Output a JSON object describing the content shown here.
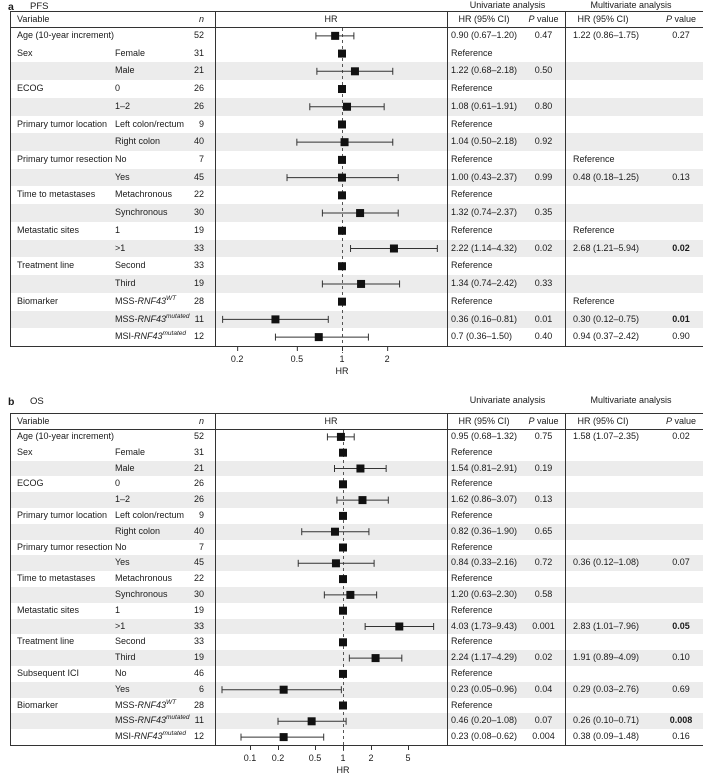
{
  "chart_data": [
    {
      "type": "forest",
      "panel_letter": "a",
      "title": "PFS",
      "xlabel": "HR",
      "xscale": "log",
      "ticks": [
        0.2,
        0.5,
        1,
        2
      ],
      "tick_labels": [
        "0.2",
        "0.5",
        "1",
        "2"
      ],
      "headers": {
        "variable": "Variable",
        "n": "n",
        "plot": "HR",
        "hr_ci": "HR (95% CI)",
        "p": "P",
        "p_rest": " value",
        "univariate": "Univariate analysis",
        "multivariate": "Multivariate analysis"
      },
      "rows": [
        {
          "group": "Age  (10-year increment)",
          "label": "",
          "n": "52",
          "hr": 0.9,
          "lo": 0.67,
          "hi": 1.2,
          "uni": "0.90 (0.67–1.20)",
          "uni_p": "0.47",
          "multi": "1.22 (0.86–1.75)",
          "multi_p": "0.27"
        },
        {
          "group": "Sex",
          "label": "Female",
          "n": "31",
          "ref": true,
          "uni": "Reference"
        },
        {
          "label": "Male",
          "n": "21",
          "hr": 1.22,
          "lo": 0.68,
          "hi": 2.18,
          "uni": "1.22 (0.68–2.18)",
          "uni_p": "0.50"
        },
        {
          "group": "ECOG",
          "label": "0",
          "n": "26",
          "ref": true,
          "uni": "Reference"
        },
        {
          "label": "1–2",
          "n": "26",
          "hr": 1.08,
          "lo": 0.61,
          "hi": 1.91,
          "uni": "1.08 (0.61–1.91)",
          "uni_p": "0.80"
        },
        {
          "group": "Primary tumor location",
          "label": "Left colon/rectum",
          "n": "9",
          "ref": true,
          "uni": "Reference"
        },
        {
          "label": "Right colon",
          "n": "40",
          "hr": 1.04,
          "lo": 0.5,
          "hi": 2.18,
          "uni": "1.04 (0.50–2.18)",
          "uni_p": "0.92"
        },
        {
          "group": "Primary tumor resection",
          "label": "No",
          "n": "7",
          "ref": true,
          "uni": "Reference",
          "multi": "Reference"
        },
        {
          "label": "Yes",
          "n": "45",
          "hr": 1.0,
          "lo": 0.43,
          "hi": 2.37,
          "uni": "1.00 (0.43–2.37)",
          "uni_p": "0.99",
          "multi": "0.48 (0.18–1.25)",
          "multi_p": "0.13"
        },
        {
          "group": "Time to metastases",
          "label": "Metachronous",
          "n": "22",
          "ref": true,
          "uni": "Reference"
        },
        {
          "label": "Synchronous",
          "n": "30",
          "hr": 1.32,
          "lo": 0.74,
          "hi": 2.37,
          "uni": "1.32 (0.74–2.37)",
          "uni_p": "0.35"
        },
        {
          "group": "Metastatic sites",
          "label": "1",
          "n": "19",
          "ref": true,
          "uni": "Reference",
          "multi": "Reference"
        },
        {
          "label": ">1",
          "n": "33",
          "hr": 2.22,
          "lo": 1.14,
          "hi": 4.32,
          "uni": "2.22 (1.14–4.32)",
          "uni_p": "0.02",
          "multi": "2.68 (1.21–5.94)",
          "multi_p": "0.02",
          "multi_p_bold": true
        },
        {
          "group": "Treatment line",
          "label": "Second",
          "n": "33",
          "ref": true,
          "uni": "Reference"
        },
        {
          "label": "Third",
          "n": "19",
          "hr": 1.34,
          "lo": 0.74,
          "hi": 2.42,
          "uni": "1.34 (0.74–2.42)",
          "uni_p": "0.33"
        },
        {
          "group": "Biomarker",
          "label": {
            "pre": "MSS-",
            "gene": "RNF43",
            "sup": "WT"
          },
          "n": "28",
          "ref": true,
          "uni": "Reference",
          "multi": "Reference"
        },
        {
          "label": {
            "pre": "MSS-",
            "gene": "RNF43",
            "sup": "mutated"
          },
          "n": "11",
          "hr": 0.36,
          "lo": 0.16,
          "hi": 0.81,
          "uni": "0.36 (0.16–0.81)",
          "uni_p": "0.01",
          "multi": "0.30 (0.12–0.75)",
          "multi_p": "0.01",
          "multi_p_bold": true
        },
        {
          "label": {
            "pre": "MSI-",
            "gene": "RNF43",
            "sup": "mutated"
          },
          "n": "12",
          "hr": 0.7,
          "lo": 0.36,
          "hi": 1.5,
          "uni": "0.7 (0.36–1.50)",
          "uni_p": "0.40",
          "multi": "0.94 (0.37–2.42)",
          "multi_p": "0.90"
        }
      ]
    },
    {
      "type": "forest",
      "panel_letter": "b",
      "title": "OS",
      "xlabel": "HR",
      "xscale": "log",
      "ticks": [
        0.1,
        0.2,
        0.5,
        1,
        2,
        5
      ],
      "tick_labels": [
        "0.1",
        "0.2",
        "0.5",
        "1",
        "2",
        "5"
      ],
      "headers": {
        "variable": "Variable",
        "n": "n",
        "plot": "HR",
        "hr_ci": "HR (95% CI)",
        "p": "P",
        "p_rest": " value",
        "univariate": "Univariate analysis",
        "multivariate": "Multivariate analysis"
      },
      "rows": [
        {
          "group": "Age  (10-year increment)",
          "label": "",
          "n": "52",
          "hr": 0.95,
          "lo": 0.68,
          "hi": 1.32,
          "uni": "0.95 (0.68–1.32)",
          "uni_p": "0.75",
          "multi": "1.58 (1.07–2.35)",
          "multi_p": "0.02"
        },
        {
          "group": "Sex",
          "label": "Female",
          "n": "31",
          "ref": true,
          "uni": "Reference"
        },
        {
          "label": "Male",
          "n": "21",
          "hr": 1.54,
          "lo": 0.81,
          "hi": 2.91,
          "uni": "1.54 (0.81–2.91)",
          "uni_p": "0.19"
        },
        {
          "group": "ECOG",
          "label": "0",
          "n": "26",
          "ref": true,
          "uni": "Reference"
        },
        {
          "label": "1–2",
          "n": "26",
          "hr": 1.62,
          "lo": 0.86,
          "hi": 3.07,
          "uni": "1.62 (0.86–3.07)",
          "uni_p": "0.13"
        },
        {
          "group": "Primary tumor location",
          "label": "Left colon/rectum",
          "n": "9",
          "ref": true,
          "uni": "Reference"
        },
        {
          "label": "Right colon",
          "n": "40",
          "hr": 0.82,
          "lo": 0.36,
          "hi": 1.9,
          "uni": "0.82 (0.36–1.90)",
          "uni_p": "0.65"
        },
        {
          "group": "Primary tumor resection",
          "label": "No",
          "n": "7",
          "ref": true,
          "uni": "Reference"
        },
        {
          "label": "Yes",
          "n": "45",
          "hr": 0.84,
          "lo": 0.33,
          "hi": 2.16,
          "uni": "0.84 (0.33–2.16)",
          "uni_p": "0.72",
          "multi": "0.36 (0.12–1.08)",
          "multi_p": "0.07"
        },
        {
          "group": "Time to metastases",
          "label": "Metachronous",
          "n": "22",
          "ref": true,
          "uni": "Reference"
        },
        {
          "label": "Synchronous",
          "n": "30",
          "hr": 1.2,
          "lo": 0.63,
          "hi": 2.3,
          "uni": "1.20 (0.63–2.30)",
          "uni_p": "0.58"
        },
        {
          "group": "Metastatic sites",
          "label": "1",
          "n": "19",
          "ref": true,
          "uni": "Reference"
        },
        {
          "label": ">1",
          "n": "33",
          "hr": 4.03,
          "lo": 1.73,
          "hi": 9.43,
          "uni": "4.03 (1.73–9.43)",
          "uni_p": "0.001",
          "multi": "2.83 (1.01–7.96)",
          "multi_p": "0.05",
          "multi_p_bold": true
        },
        {
          "group": "Treatment line",
          "label": "Second",
          "n": "33",
          "ref": true,
          "uni": "Reference"
        },
        {
          "label": "Third",
          "n": "19",
          "hr": 2.24,
          "lo": 1.17,
          "hi": 4.29,
          "uni": "2.24 (1.17–4.29)",
          "uni_p": "0.02",
          "multi": "1.91 (0.89–4.09)",
          "multi_p": "0.10"
        },
        {
          "group": "Subsequent ICI",
          "label": "No",
          "n": "46",
          "ref": true,
          "uni": "Reference"
        },
        {
          "label": "Yes",
          "n": "6",
          "hr": 0.23,
          "lo": 0.05,
          "hi": 0.96,
          "uni": "0.23 (0.05–0.96)",
          "uni_p": "0.04",
          "multi": "0.29 (0.03–2.76)",
          "multi_p": "0.69"
        },
        {
          "group": "Biomarker",
          "label": {
            "pre": "MSS-",
            "gene": "RNF43",
            "sup": "WT"
          },
          "n": "28",
          "ref": true,
          "uni": "Reference"
        },
        {
          "label": {
            "pre": "MSS-",
            "gene": "RNF43",
            "sup": "mutated"
          },
          "n": "11",
          "hr": 0.46,
          "lo": 0.2,
          "hi": 1.08,
          "uni": "0.46 (0.20–1.08)",
          "uni_p": "0.07",
          "multi": "0.26 (0.10–0.71)",
          "multi_p": "0.008",
          "multi_p_bold": true
        },
        {
          "label": {
            "pre": "MSI-",
            "gene": "RNF43",
            "sup": "mutated"
          },
          "n": "12",
          "hr": 0.23,
          "lo": 0.08,
          "hi": 0.62,
          "uni": "0.23 (0.08–0.62)",
          "uni_p": "0.004",
          "multi": "0.38 (0.09–1.48)",
          "multi_p": "0.16"
        }
      ]
    }
  ],
  "colors": {
    "stripe": "#ececec",
    "border": "#333333",
    "marker": "#111111",
    "dashed_line": "#555555"
  }
}
